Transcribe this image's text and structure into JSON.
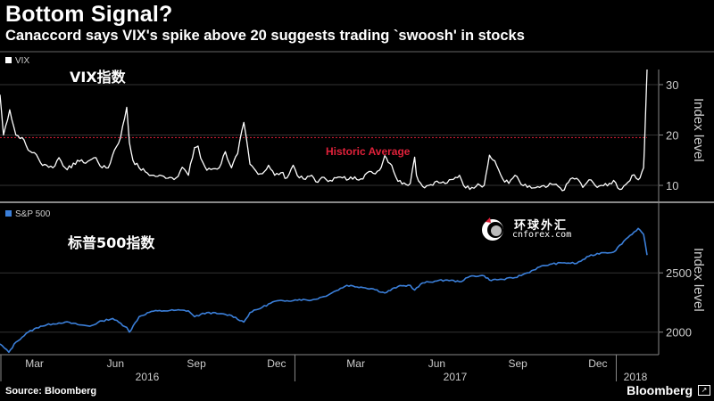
{
  "header": {
    "title": "Bottom Signal?",
    "subtitle": "Canaccord says VIX's spike above 20 suggests trading `swoosh' in stocks"
  },
  "footer": {
    "source": "Source: Bloomberg",
    "brand": "Bloomberg"
  },
  "watermark": {
    "chinese": "环球外汇",
    "english": "cnforex.com"
  },
  "colors": {
    "background": "#000000",
    "vix_line": "#ffffff",
    "spx_line": "#3b7fd9",
    "historic_average": "#e0213a",
    "grid": "#333333"
  },
  "chart_data": [
    {
      "type": "line",
      "legend": "VIX",
      "overlay_label": "VIX指数",
      "ylabel": "Index level",
      "ylim": [
        7,
        33
      ],
      "yticks": [
        10,
        20,
        30
      ],
      "grid": true,
      "reference_line": {
        "label": "Historic Average",
        "value": 19.5
      },
      "series": [
        {
          "name": "VIX",
          "x": [
            "2016-02-01",
            "2016-02-05",
            "2016-02-12",
            "2016-02-19",
            "2016-02-26",
            "2016-03-04",
            "2016-03-11",
            "2016-03-18",
            "2016-03-25",
            "2016-04-01",
            "2016-04-08",
            "2016-04-15",
            "2016-04-22",
            "2016-04-29",
            "2016-05-06",
            "2016-05-13",
            "2016-05-20",
            "2016-05-27",
            "2016-06-03",
            "2016-06-10",
            "2016-06-17",
            "2016-06-24",
            "2016-06-27",
            "2016-07-01",
            "2016-07-08",
            "2016-07-15",
            "2016-07-22",
            "2016-07-29",
            "2016-08-05",
            "2016-08-12",
            "2016-08-19",
            "2016-08-26",
            "2016-09-02",
            "2016-09-09",
            "2016-09-13",
            "2016-09-16",
            "2016-09-23",
            "2016-09-30",
            "2016-10-07",
            "2016-10-14",
            "2016-10-21",
            "2016-10-28",
            "2016-11-04",
            "2016-11-11",
            "2016-11-18",
            "2016-11-25",
            "2016-12-02",
            "2016-12-09",
            "2016-12-16",
            "2016-12-23",
            "2016-12-30",
            "2017-01-06",
            "2017-01-13",
            "2017-01-20",
            "2017-01-27",
            "2017-02-03",
            "2017-02-10",
            "2017-02-17",
            "2017-02-24",
            "2017-03-03",
            "2017-03-10",
            "2017-03-17",
            "2017-03-24",
            "2017-03-31",
            "2017-04-07",
            "2017-04-13",
            "2017-04-21",
            "2017-04-28",
            "2017-05-05",
            "2017-05-12",
            "2017-05-17",
            "2017-05-19",
            "2017-05-26",
            "2017-06-02",
            "2017-06-09",
            "2017-06-16",
            "2017-06-23",
            "2017-06-30",
            "2017-07-07",
            "2017-07-14",
            "2017-07-21",
            "2017-07-28",
            "2017-08-04",
            "2017-08-10",
            "2017-08-18",
            "2017-08-25",
            "2017-09-01",
            "2017-09-08",
            "2017-09-15",
            "2017-09-22",
            "2017-09-29",
            "2017-10-06",
            "2017-10-13",
            "2017-10-20",
            "2017-10-27",
            "2017-11-03",
            "2017-11-10",
            "2017-11-17",
            "2017-11-24",
            "2017-12-01",
            "2017-12-08",
            "2017-12-15",
            "2017-12-22",
            "2017-12-29",
            "2018-01-05",
            "2018-01-12",
            "2018-01-19",
            "2018-01-26",
            "2018-02-01",
            "2018-02-02",
            "2018-02-05"
          ],
          "values": [
            28,
            20,
            25,
            20,
            19.5,
            17,
            16.5,
            14.5,
            14,
            13.5,
            15.5,
            13.5,
            13.5,
            15,
            14.5,
            15,
            15.5,
            13.5,
            13.5,
            17,
            19.5,
            25.5,
            18.5,
            15,
            13.5,
            12.7,
            12,
            11.8,
            11.8,
            11.6,
            11.5,
            13.6,
            12,
            17.5,
            17.8,
            15.4,
            13,
            13.3,
            13.5,
            16.7,
            13.5,
            16.3,
            22.5,
            14.2,
            12.8,
            12.3,
            14,
            12,
            12.5,
            11.5,
            14,
            11.5,
            11.2,
            12,
            10.6,
            11.6,
            11,
            11.5,
            11.5,
            11.2,
            11.7,
            11.3,
            12.5,
            12.4,
            13,
            15.9,
            14,
            10.8,
            10.5,
            10.4,
            15.6,
            12,
            9.8,
            10,
            10.7,
            10.5,
            10.5,
            11.2,
            12,
            9.5,
            9.6,
            10.3,
            10,
            16,
            14,
            11.3,
            10.4,
            12,
            10.2,
            9.6,
            9.5,
            9.6,
            9.6,
            10.2,
            9.8,
            9.1,
            11.3,
            11.4,
            9.6,
            11.1,
            10,
            10,
            9.9,
            11,
            9.2,
            10.2,
            12,
            11.1,
            13.5,
            17.3,
            33
          ]
        }
      ]
    },
    {
      "type": "line",
      "legend": "S&P 500",
      "overlay_label": "标普500指数",
      "ylabel": "Index level",
      "ylim": [
        1810,
        2960
      ],
      "yticks": [
        2000,
        2500
      ],
      "grid": true,
      "x_axis": {
        "month_labels": [
          "Mar",
          "Jun",
          "Sep",
          "Dec",
          "Mar",
          "Jun",
          "Sep",
          "Dec"
        ],
        "year_labels": [
          "2016",
          "2017",
          "2018"
        ]
      },
      "series": [
        {
          "name": "S&P 500",
          "x": [
            "2016-02-01",
            "2016-02-11",
            "2016-02-19",
            "2016-03-04",
            "2016-03-18",
            "2016-04-01",
            "2016-04-15",
            "2016-04-29",
            "2016-05-13",
            "2016-05-27",
            "2016-06-08",
            "2016-06-24",
            "2016-06-27",
            "2016-07-08",
            "2016-07-22",
            "2016-08-05",
            "2016-08-19",
            "2016-09-02",
            "2016-09-09",
            "2016-09-23",
            "2016-10-07",
            "2016-10-21",
            "2016-11-04",
            "2016-11-11",
            "2016-11-25",
            "2016-12-09",
            "2016-12-23",
            "2017-01-06",
            "2017-01-20",
            "2017-02-03",
            "2017-02-17",
            "2017-03-01",
            "2017-03-17",
            "2017-03-31",
            "2017-04-13",
            "2017-04-28",
            "2017-05-12",
            "2017-05-17",
            "2017-05-26",
            "2017-06-09",
            "2017-06-23",
            "2017-07-07",
            "2017-07-21",
            "2017-08-04",
            "2017-08-10",
            "2017-08-25",
            "2017-09-08",
            "2017-09-22",
            "2017-10-06",
            "2017-10-20",
            "2017-11-03",
            "2017-11-17",
            "2017-12-01",
            "2017-12-15",
            "2017-12-29",
            "2018-01-12",
            "2018-01-26",
            "2018-02-01",
            "2018-02-05"
          ],
          "values": [
            1900,
            1830,
            1915,
            2000,
            2050,
            2070,
            2085,
            2065,
            2050,
            2095,
            2115,
            2040,
            2000,
            2130,
            2175,
            2180,
            2185,
            2180,
            2130,
            2165,
            2155,
            2140,
            2085,
            2165,
            2210,
            2260,
            2265,
            2275,
            2270,
            2300,
            2350,
            2395,
            2380,
            2365,
            2330,
            2385,
            2395,
            2355,
            2415,
            2430,
            2440,
            2425,
            2475,
            2475,
            2440,
            2445,
            2460,
            2500,
            2550,
            2575,
            2585,
            2580,
            2640,
            2670,
            2675,
            2785,
            2875,
            2825,
            2650
          ]
        }
      ]
    }
  ]
}
